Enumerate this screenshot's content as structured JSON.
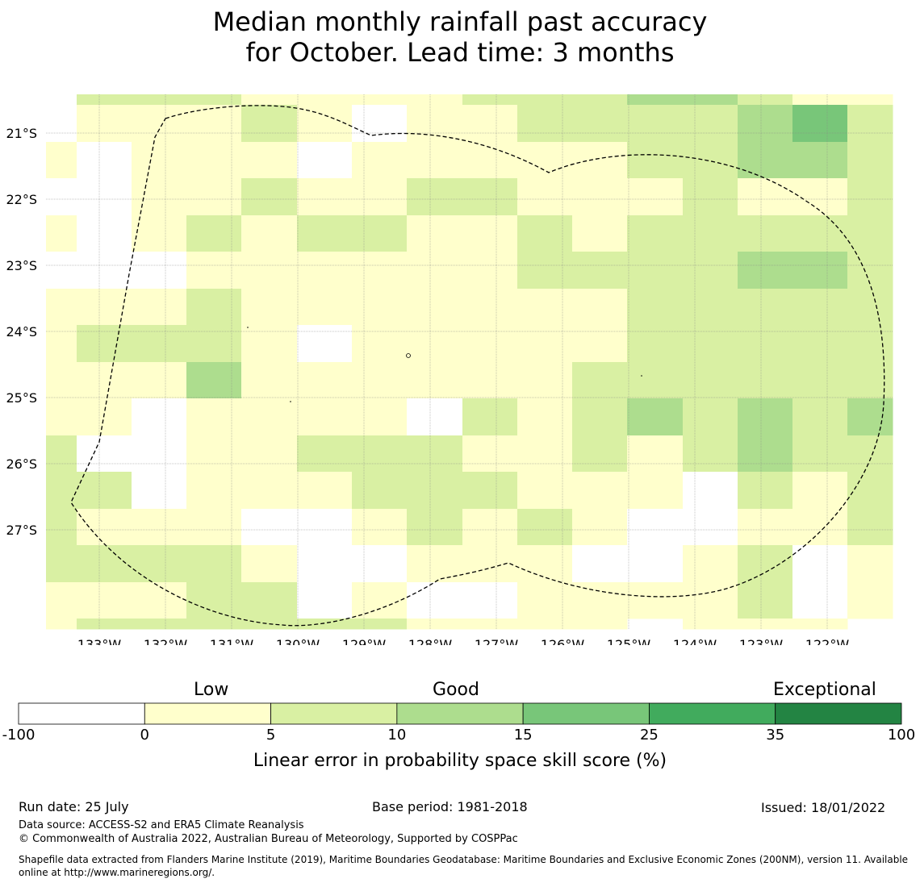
{
  "title": {
    "line1": "Median monthly rainfall past accuracy",
    "line2": "for October. Lead time: 3 months"
  },
  "map": {
    "lat_labels": [
      "21°S",
      "22°S",
      "23°S",
      "24°S",
      "25°S",
      "26°S",
      "27°S"
    ],
    "lon_labels": [
      "133°W",
      "132°W",
      "131°W",
      "130°W",
      "129°W",
      "128°W",
      "127°W",
      "126°W",
      "125°W",
      "124°W",
      "123°W",
      "122°W"
    ],
    "colors": {
      "-1": "#ffffff",
      "0": "#ffffcc",
      "1": "#d9f0a3",
      "2": "#addd8e",
      "3": "#78c679",
      "4": "#41ab5d",
      "5": "#238443"
    },
    "grid_cells": [
      "xx1111111111000000001111111111000000000000000000000000000000000000222222222222222211111111110000000000",
      "xx0000000000000000001111111111000000000000000000000000000000000000222222222222222211111111110000000000",
      "xx0000000000000000001111111111000000000000000000000000000000000000222222222222222211111111110000000000",
      "xx0000000000000000001111111111000000000000000000000000000000000000222222222222222211111111110000000000",
      "xx000000000000000000111111111100000000111111111111111111000000000011111111111111112222222244444444222222",
      "xx0000000000000000001111111111000000000000000000000000000000000000111111111111111122222222444444442222"
    ],
    "cells": [
      "x10000011110x00001111110000",
      "0--00001100--00011111111111",
      "0--0000110--00000000011211",
      "---00001111110000111111100011",
      "0-11110011100000001101111110",
      "---0000011100000001111122211",
      "00011110000000011111111111",
      "0011100--0000001111111111",
      "00011120000000111111111111",
      "00--000000-0110111121112",
      "1--000111110000-11111121111",
      "11-000011111100000--1110-1",
      "111000--0011000-----00011",
      "111110--00011000--00010--",
      "0001111-0--000011--001--0",
      "00111110001100000---0-00"
    ]
  },
  "colorbar": {
    "categories": [
      "Low",
      "Good",
      "Exceptional"
    ],
    "bins": [
      {
        "from": "-100",
        "to": "0",
        "color": "#ffffff"
      },
      {
        "from": "0",
        "to": "5",
        "color": "#ffffcc"
      },
      {
        "from": "5",
        "to": "10",
        "color": "#d9f0a3"
      },
      {
        "from": "10",
        "to": "15",
        "color": "#addd8e"
      },
      {
        "from": "15",
        "to": "25",
        "color": "#78c679"
      },
      {
        "from": "25",
        "to": "35",
        "color": "#41ab5d"
      },
      {
        "from": "35",
        "to": "100",
        "color": "#238443"
      }
    ],
    "ticks": [
      "-100",
      "0",
      "5",
      "10",
      "15",
      "25",
      "35",
      "100"
    ],
    "label": "Linear error in probability space skill score (%)"
  },
  "footer": {
    "run_date": "Run date: 25 July",
    "base_period": "Base period: 1981-2018",
    "issued": "Issued: 18/01/2022",
    "data_source": "Data source: ACCESS-S2 and ERA5 Climate Reanalysis",
    "copyright": "© Commonwealth of Australia 2022, Australian Bureau of Meteorology, Supported by COSPPac",
    "shapefile": "Shapefile data extracted from Flanders Marine Institute (2019), Maritime Boundaries Geodatabase: Maritime Boundaries and Exclusive Economic Zones (200NM), version 11. Available online at http://www.marineregions.org/."
  }
}
